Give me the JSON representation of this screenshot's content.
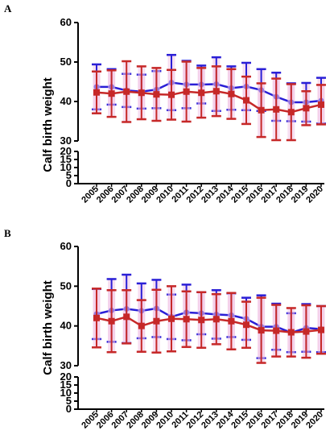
{
  "chart_data": [
    {
      "type": "line",
      "panel_label": "A",
      "ylabel": "Calf birth weight",
      "ylim": [
        0,
        60
      ],
      "yticks_upper": [
        30,
        40,
        50,
        60
      ],
      "yticks_lower": [
        0,
        5,
        10,
        15,
        20
      ],
      "broken_axis": true,
      "x": [
        "2005",
        "2006",
        "2007",
        "2008",
        "2009",
        "2010",
        "2011",
        "2012",
        "2013",
        "2014",
        "2015",
        "2016",
        "2017",
        "2018",
        "2019",
        "2020"
      ],
      "colors": {
        "blue": "#2a1fd6",
        "red": "#c62828",
        "band": "#f2c6e6"
      },
      "series": [
        {
          "color": "blue",
          "values": [
            43.7,
            43.7,
            42.8,
            42.5,
            43.0,
            44.8,
            44.3,
            44.3,
            44.4,
            43.4,
            43.8,
            42.9,
            41.2,
            39.8,
            39.8,
            40.2
          ],
          "sd": [
            5.7,
            4.5,
            4.2,
            4.3,
            4.7,
            7.0,
            6.0,
            4.8,
            6.8,
            5.5,
            6.0,
            5.3,
            6.1,
            4.8,
            4.9,
            5.8
          ]
        },
        {
          "color": "red",
          "values": [
            42.3,
            42.0,
            42.5,
            42.2,
            41.8,
            41.7,
            42.5,
            42.2,
            42.6,
            41.9,
            40.3,
            37.8,
            38.0,
            37.3,
            38.3,
            39.2
          ],
          "sd": [
            5.3,
            5.9,
            7.7,
            6.7,
            6.7,
            6.3,
            7.6,
            6.3,
            6.3,
            6.3,
            6.0,
            6.8,
            7.8,
            7.1,
            4.3,
            5.0
          ]
        }
      ]
    },
    {
      "type": "line",
      "panel_label": "B",
      "ylabel": "Calf birth weight",
      "ylim": [
        0,
        60
      ],
      "yticks_upper": [
        30,
        40,
        50,
        60
      ],
      "yticks_lower": [
        0,
        5,
        10,
        15,
        20
      ],
      "broken_axis": true,
      "x": [
        "2005",
        "2006",
        "2007",
        "2008",
        "2009",
        "2010",
        "2011",
        "2012",
        "2013",
        "2014",
        "2015",
        "2016",
        "2017",
        "2018",
        "2019",
        "2020"
      ],
      "colors": {
        "blue": "#2a1fd6",
        "red": "#c62828",
        "band": "#f2c6e6"
      },
      "series": [
        {
          "color": "blue",
          "values": [
            43.0,
            43.9,
            44.3,
            43.8,
            44.4,
            42.3,
            43.4,
            43.2,
            42.9,
            42.7,
            41.8,
            39.8,
            39.8,
            38.3,
            39.5,
            39.2
          ],
          "sd": [
            6.3,
            7.9,
            8.6,
            6.9,
            7.2,
            5.6,
            7.0,
            5.3,
            6.1,
            5.5,
            5.3,
            7.9,
            5.8,
            4.9,
            6.0,
            5.8
          ]
        },
        {
          "color": "red",
          "values": [
            42.0,
            41.2,
            42.3,
            40.0,
            41.2,
            41.8,
            41.7,
            41.5,
            41.7,
            41.2,
            40.3,
            38.9,
            38.8,
            38.4,
            38.6,
            39.0
          ],
          "sd": [
            7.4,
            7.8,
            6.7,
            6.5,
            7.9,
            8.2,
            7.0,
            7.0,
            6.3,
            7.1,
            5.8,
            8.2,
            6.5,
            6.1,
            6.6,
            6.0
          ]
        }
      ]
    }
  ]
}
